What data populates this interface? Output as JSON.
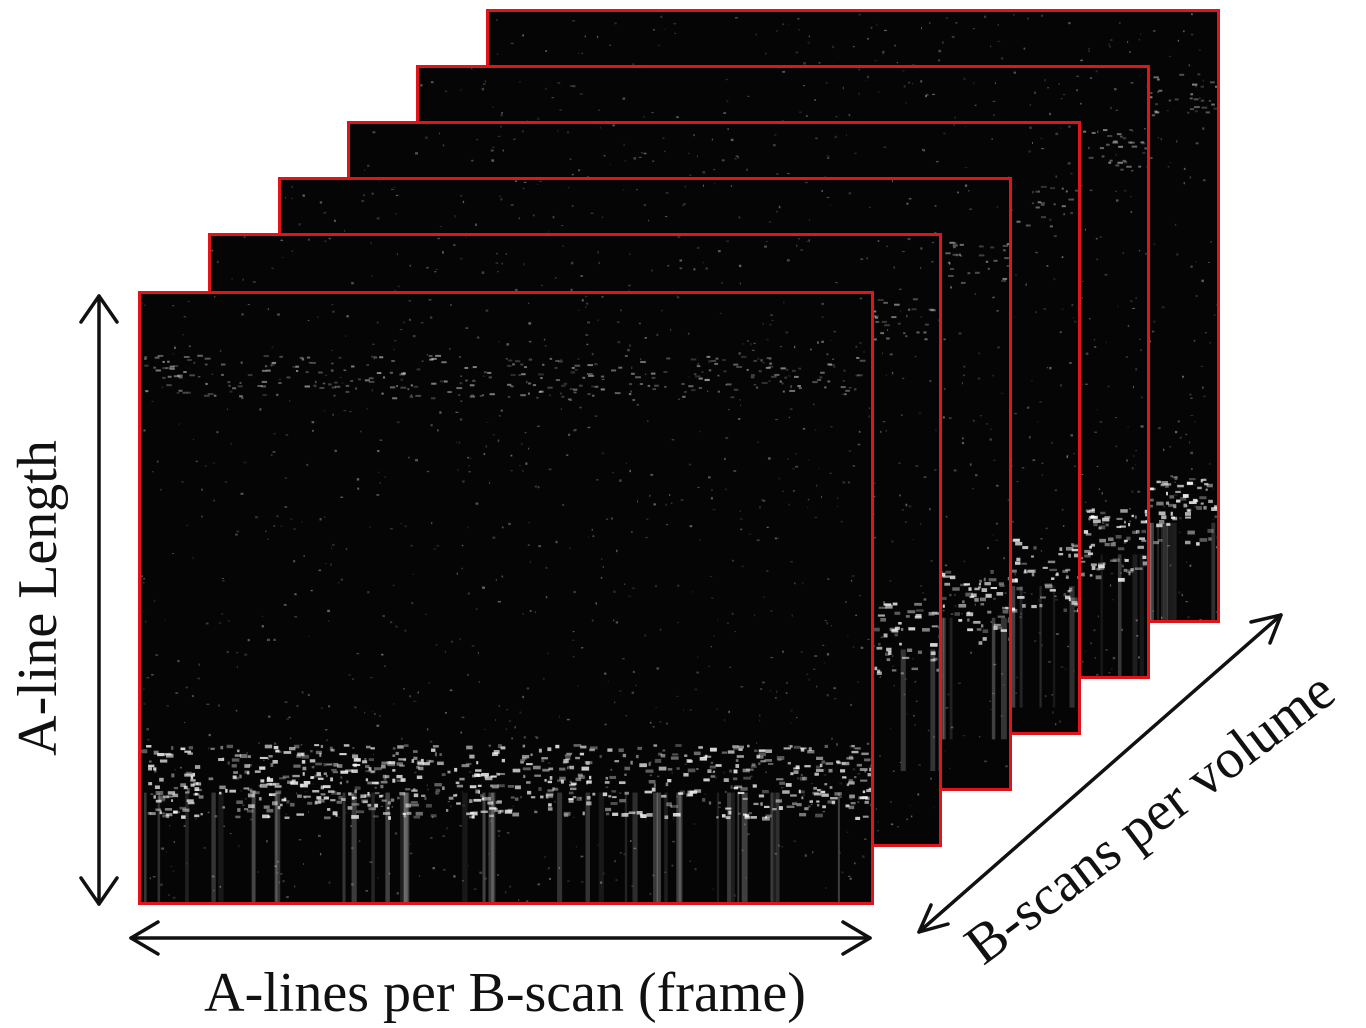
{
  "labels": {
    "vertical_axis": "A-line Length",
    "horizontal_axis": "A-lines per B-scan (frame)",
    "depth_axis": "B-scans per volume"
  },
  "frames": {
    "count": 6,
    "border_color": "#e0141b",
    "background_color": "#050505",
    "image_description_colors": {
      "speckle": "#ffffff"
    }
  },
  "arrows": {
    "color": "#111111"
  }
}
